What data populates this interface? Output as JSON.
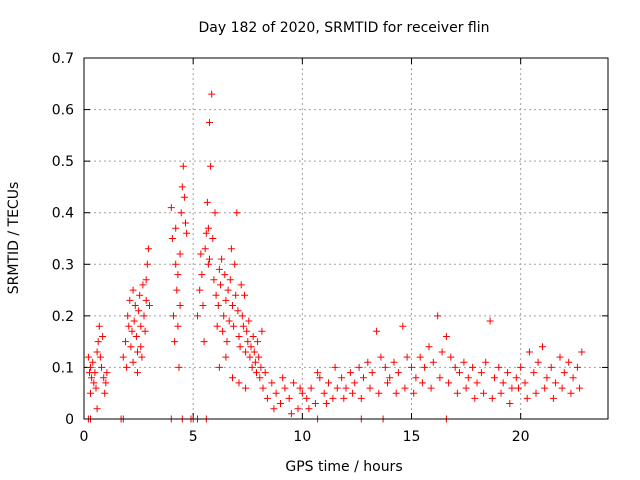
{
  "chart_data": {
    "type": "scatter",
    "title": "Day 182 of 2020, SRMTID for receiver flin",
    "xlabel": "GPS time / hours",
    "ylabel": "SRMTID / TECUs",
    "xlim": [
      0,
      24
    ],
    "ylim": [
      0,
      0.7
    ],
    "xticks": [
      0,
      5,
      10,
      15,
      20
    ],
    "xtick_labels": [
      "0",
      "5",
      "10",
      "15",
      "20"
    ],
    "yticks": [
      0,
      0.1,
      0.2,
      0.3,
      0.4,
      0.5,
      0.6,
      0.7
    ],
    "ytick_labels": [
      "0",
      "0.1",
      "0.2",
      "0.3",
      "0.4",
      "0.5",
      "0.6",
      "0.7"
    ],
    "grid": true,
    "marker": "+",
    "color": "#ff0000",
    "series": [
      {
        "name": "SRMTID",
        "points": [
          [
            0.2,
            0.12
          ],
          [
            0.25,
            0.09
          ],
          [
            0.3,
            0.1
          ],
          [
            0.35,
            0.08
          ],
          [
            0.4,
            0.11
          ],
          [
            0.45,
            0.07
          ],
          [
            0.5,
            0.09
          ],
          [
            0.55,
            0.06
          ],
          [
            0.6,
            0.13
          ],
          [
            0.65,
            0.15
          ],
          [
            0.7,
            0.18
          ],
          [
            0.75,
            0.12
          ],
          [
            0.8,
            0.1
          ],
          [
            0.85,
            0.16
          ],
          [
            0.9,
            0.08
          ],
          [
            0.95,
            0.05
          ],
          [
            1.0,
            0.07
          ],
          [
            1.05,
            0.09
          ],
          [
            0.3,
            0.05
          ],
          [
            0.6,
            0.02
          ],
          [
            1.8,
            0.12
          ],
          [
            1.9,
            0.15
          ],
          [
            2.0,
            0.2
          ],
          [
            2.05,
            0.18
          ],
          [
            2.1,
            0.23
          ],
          [
            2.15,
            0.14
          ],
          [
            2.2,
            0.17
          ],
          [
            2.25,
            0.11
          ],
          [
            2.3,
            0.19
          ],
          [
            2.35,
            0.22
          ],
          [
            2.4,
            0.16
          ],
          [
            2.45,
            0.13
          ],
          [
            2.5,
            0.21
          ],
          [
            2.55,
            0.24
          ],
          [
            2.6,
            0.18
          ],
          [
            2.65,
            0.12
          ],
          [
            2.7,
            0.26
          ],
          [
            2.75,
            0.2
          ],
          [
            2.8,
            0.17
          ],
          [
            2.85,
            0.23
          ],
          [
            2.9,
            0.3
          ],
          [
            2.95,
            0.33
          ],
          [
            3.0,
            0.22
          ],
          [
            1.95,
            0.1
          ],
          [
            2.25,
            0.25
          ],
          [
            2.45,
            0.09
          ],
          [
            2.6,
            0.14
          ],
          [
            2.85,
            0.27
          ],
          [
            4.0,
            0.41
          ],
          [
            4.05,
            0.35
          ],
          [
            4.1,
            0.2
          ],
          [
            4.15,
            0.15
          ],
          [
            4.2,
            0.3
          ],
          [
            4.25,
            0.25
          ],
          [
            4.3,
            0.18
          ],
          [
            4.35,
            0.1
          ],
          [
            4.4,
            0.32
          ],
          [
            4.45,
            0.4
          ],
          [
            4.5,
            0.45
          ],
          [
            4.55,
            0.49
          ],
          [
            4.6,
            0.43
          ],
          [
            4.65,
            0.38
          ],
          [
            4.7,
            0.36
          ],
          [
            4.3,
            0.28
          ],
          [
            4.2,
            0.37
          ],
          [
            4.4,
            0.22
          ],
          [
            5.2,
            0.2
          ],
          [
            5.3,
            0.25
          ],
          [
            5.35,
            0.32
          ],
          [
            5.4,
            0.28
          ],
          [
            5.45,
            0.22
          ],
          [
            5.5,
            0.15
          ],
          [
            5.55,
            0.33
          ],
          [
            5.6,
            0.36
          ],
          [
            5.65,
            0.42
          ],
          [
            5.7,
            0.37
          ],
          [
            5.75,
            0.31
          ],
          [
            5.8,
            0.49
          ],
          [
            5.85,
            0.63
          ],
          [
            5.75,
            0.575
          ],
          [
            5.7,
            0.3
          ],
          [
            5.9,
            0.35
          ],
          [
            5.95,
            0.27
          ],
          [
            6.0,
            0.4
          ],
          [
            6.05,
            0.24
          ],
          [
            6.1,
            0.18
          ],
          [
            6.15,
            0.22
          ],
          [
            6.2,
            0.29
          ],
          [
            6.25,
            0.26
          ],
          [
            6.3,
            0.31
          ],
          [
            6.35,
            0.17
          ],
          [
            6.4,
            0.2
          ],
          [
            6.45,
            0.28
          ],
          [
            6.5,
            0.23
          ],
          [
            6.55,
            0.15
          ],
          [
            6.6,
            0.25
          ],
          [
            6.65,
            0.19
          ],
          [
            6.7,
            0.27
          ],
          [
            6.75,
            0.33
          ],
          [
            6.8,
            0.22
          ],
          [
            6.85,
            0.18
          ],
          [
            6.9,
            0.3
          ],
          [
            6.95,
            0.24
          ],
          [
            7.0,
            0.4
          ],
          [
            7.05,
            0.21
          ],
          [
            7.1,
            0.16
          ],
          [
            7.15,
            0.14
          ],
          [
            7.2,
            0.26
          ],
          [
            7.25,
            0.2
          ],
          [
            7.3,
            0.18
          ],
          [
            7.35,
            0.24
          ],
          [
            7.4,
            0.13
          ],
          [
            7.45,
            0.17
          ],
          [
            7.5,
            0.15
          ],
          [
            7.55,
            0.19
          ],
          [
            7.6,
            0.12
          ],
          [
            7.65,
            0.14
          ],
          [
            7.7,
            0.1
          ],
          [
            7.75,
            0.16
          ],
          [
            7.8,
            0.13
          ],
          [
            7.85,
            0.11
          ],
          [
            7.9,
            0.09
          ],
          [
            7.95,
            0.15
          ],
          [
            8.0,
            0.12
          ],
          [
            8.05,
            0.08
          ],
          [
            8.1,
            0.1
          ],
          [
            8.15,
            0.17
          ],
          [
            6.2,
            0.1
          ],
          [
            6.5,
            0.12
          ],
          [
            6.8,
            0.08
          ],
          [
            7.1,
            0.07
          ],
          [
            7.4,
            0.06
          ],
          [
            8.2,
            0.06
          ],
          [
            8.4,
            0.04
          ],
          [
            8.6,
            0.07
          ],
          [
            8.8,
            0.05
          ],
          [
            9.0,
            0.03
          ],
          [
            9.2,
            0.06
          ],
          [
            9.4,
            0.04
          ],
          [
            9.6,
            0.07
          ],
          [
            9.8,
            0.02
          ],
          [
            10.0,
            0.05
          ],
          [
            10.2,
            0.04
          ],
          [
            10.4,
            0.06
          ],
          [
            10.6,
            0.03
          ],
          [
            10.8,
            0.08
          ],
          [
            11.0,
            0.05
          ],
          [
            11.2,
            0.07
          ],
          [
            11.4,
            0.04
          ],
          [
            11.6,
            0.06
          ],
          [
            11.8,
            0.08
          ],
          [
            12.0,
            0.06
          ],
          [
            12.2,
            0.09
          ],
          [
            12.4,
            0.07
          ],
          [
            12.6,
            0.1
          ],
          [
            12.8,
            0.08
          ],
          [
            13.0,
            0.11
          ],
          [
            13.2,
            0.09
          ],
          [
            13.4,
            0.17
          ],
          [
            13.6,
            0.12
          ],
          [
            13.8,
            0.1
          ],
          [
            14.0,
            0.08
          ],
          [
            14.2,
            0.11
          ],
          [
            14.4,
            0.09
          ],
          [
            14.6,
            0.18
          ],
          [
            14.8,
            0.12
          ],
          [
            15.0,
            0.1
          ],
          [
            15.2,
            0.08
          ],
          [
            15.4,
            0.12
          ],
          [
            15.6,
            0.1
          ],
          [
            15.8,
            0.14
          ],
          [
            16.0,
            0.11
          ],
          [
            16.2,
            0.2
          ],
          [
            16.4,
            0.13
          ],
          [
            16.6,
            0.16
          ],
          [
            16.8,
            0.12
          ],
          [
            17.0,
            0.1
          ],
          [
            17.2,
            0.09
          ],
          [
            17.4,
            0.11
          ],
          [
            17.6,
            0.08
          ],
          [
            17.8,
            0.1
          ],
          [
            18.0,
            0.07
          ],
          [
            18.2,
            0.09
          ],
          [
            18.4,
            0.11
          ],
          [
            18.6,
            0.19
          ],
          [
            18.8,
            0.08
          ],
          [
            19.0,
            0.1
          ],
          [
            19.2,
            0.07
          ],
          [
            19.4,
            0.09
          ],
          [
            19.6,
            0.06
          ],
          [
            19.8,
            0.08
          ],
          [
            20.0,
            0.1
          ],
          [
            20.2,
            0.07
          ],
          [
            20.4,
            0.13
          ],
          [
            20.6,
            0.09
          ],
          [
            20.8,
            0.11
          ],
          [
            21.0,
            0.14
          ],
          [
            21.2,
            0.08
          ],
          [
            21.4,
            0.1
          ],
          [
            21.6,
            0.07
          ],
          [
            21.8,
            0.12
          ],
          [
            22.0,
            0.09
          ],
          [
            22.2,
            0.11
          ],
          [
            22.4,
            0.08
          ],
          [
            22.6,
            0.1
          ],
          [
            22.8,
            0.13
          ],
          [
            8.3,
            0.09
          ],
          [
            8.7,
            0.02
          ],
          [
            9.1,
            0.08
          ],
          [
            9.5,
            0.01
          ],
          [
            9.9,
            0.06
          ],
          [
            10.3,
            0.02
          ],
          [
            10.7,
            0.09
          ],
          [
            11.1,
            0.03
          ],
          [
            11.5,
            0.1
          ],
          [
            11.9,
            0.04
          ],
          [
            12.3,
            0.05
          ],
          [
            12.7,
            0.04
          ],
          [
            13.1,
            0.06
          ],
          [
            13.5,
            0.05
          ],
          [
            13.9,
            0.07
          ],
          [
            14.3,
            0.05
          ],
          [
            14.7,
            0.06
          ],
          [
            15.1,
            0.05
          ],
          [
            15.5,
            0.07
          ],
          [
            15.9,
            0.06
          ],
          [
            16.3,
            0.08
          ],
          [
            16.7,
            0.07
          ],
          [
            17.1,
            0.05
          ],
          [
            17.5,
            0.06
          ],
          [
            17.9,
            0.04
          ],
          [
            18.3,
            0.05
          ],
          [
            18.7,
            0.04
          ],
          [
            19.1,
            0.05
          ],
          [
            19.5,
            0.03
          ],
          [
            19.9,
            0.06
          ],
          [
            20.3,
            0.04
          ],
          [
            20.7,
            0.05
          ],
          [
            21.1,
            0.06
          ],
          [
            21.5,
            0.04
          ],
          [
            21.9,
            0.06
          ],
          [
            22.3,
            0.05
          ],
          [
            22.7,
            0.06
          ]
        ]
      }
    ],
    "zero_line_markers": [
      0.2,
      0.3,
      1.7,
      1.8,
      4.0,
      4.5,
      4.9,
      5.0,
      5.2,
      5.6,
      10.7,
      12.7,
      13.7,
      16.6
    ]
  }
}
